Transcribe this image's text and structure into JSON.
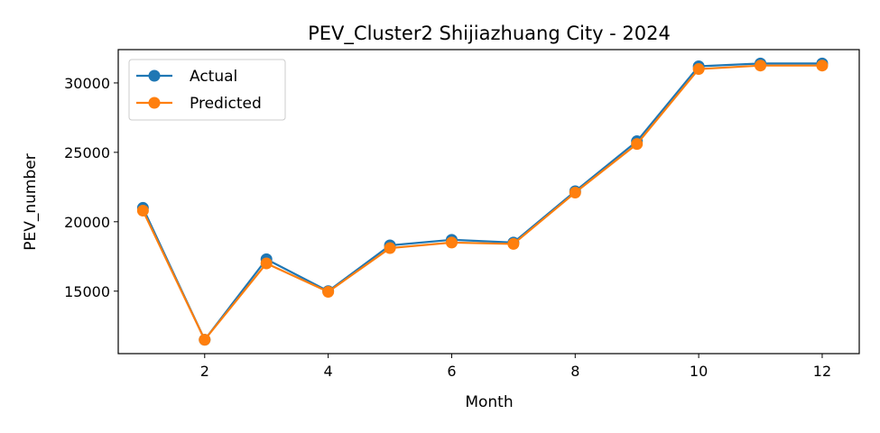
{
  "chart_data": {
    "type": "line",
    "title": "PEV_Cluster2 Shijiazhuang City - 2024",
    "xlabel": "Month",
    "ylabel": "PEV_number",
    "x": [
      1,
      2,
      3,
      4,
      5,
      6,
      7,
      8,
      9,
      10,
      11,
      12
    ],
    "xlim": [
      0.6,
      12.6
    ],
    "ylim": [
      10500,
      32400
    ],
    "xticks": [
      2,
      4,
      6,
      8,
      10,
      12
    ],
    "yticks": [
      15000,
      20000,
      25000,
      30000
    ],
    "legend_position": "upper-left",
    "grid": false,
    "series": [
      {
        "name": "Actual",
        "color": "#1f77b4",
        "marker": "circle",
        "values": [
          21000,
          11500,
          17300,
          15000,
          18300,
          18700,
          18500,
          22200,
          25800,
          31200,
          31400,
          31400
        ]
      },
      {
        "name": "Predicted",
        "color": "#ff7f0e",
        "marker": "circle",
        "values": [
          20800,
          11500,
          17000,
          14950,
          18100,
          18500,
          18400,
          22100,
          25600,
          31000,
          31250,
          31250
        ]
      }
    ]
  }
}
